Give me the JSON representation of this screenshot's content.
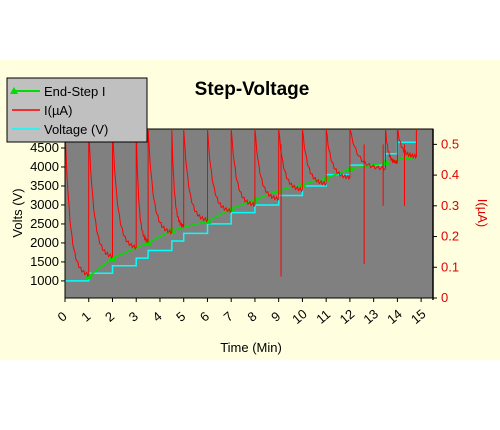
{
  "chart_data": {
    "type": "line",
    "title": "Step-Voltage",
    "xlabel": "Time (Min)",
    "ylabel_left": "Volts (V)",
    "ylabel_right": "I(µA)",
    "xlim": [
      0,
      15.5
    ],
    "ylim_left": [
      550,
      5000
    ],
    "ylim_right": [
      0,
      0.55
    ],
    "x_ticks": [
      0,
      1,
      2,
      3,
      4,
      5,
      6,
      7,
      8,
      9,
      10,
      11,
      12,
      13,
      14,
      15
    ],
    "y_ticks_left": [
      1000,
      1500,
      2000,
      2500,
      3000,
      3500,
      4000,
      4500
    ],
    "y_ticks_right": [
      0,
      0.1,
      0.2,
      0.3,
      0.4,
      0.5
    ],
    "y_tick_labels_right": [
      "0",
      "0.1",
      "0.2",
      "0.3",
      "0.4",
      "0.5"
    ],
    "legend": {
      "placement": "top-left",
      "entries": [
        "End-Step I",
        "I(µA)",
        "Voltage (V)"
      ]
    },
    "colors": {
      "plot_bg": "#808080",
      "panel_bg": "#ffffe0",
      "end_step": "#00dd00",
      "current": "#ff0000",
      "voltage": "#00ffff",
      "right_axis": "#e00000"
    },
    "series": [
      {
        "name": "End-Step I",
        "axis": "right",
        "x": [
          1,
          2,
          3.5,
          4.5,
          6,
          7,
          8,
          9,
          10,
          11,
          12,
          13.5,
          14.5
        ],
        "y": [
          0.07,
          0.13,
          0.18,
          0.22,
          0.25,
          0.29,
          0.32,
          0.35,
          0.37,
          0.39,
          0.42,
          0.44,
          0.46
        ]
      },
      {
        "name": "Voltage (V)",
        "axis": "left",
        "steps": [
          {
            "t0": 0.0,
            "t1": 1.0,
            "v": 1000
          },
          {
            "t0": 1.0,
            "t1": 2.0,
            "v": 1200
          },
          {
            "t0": 2.0,
            "t1": 3.0,
            "v": 1400
          },
          {
            "t0": 3.0,
            "t1": 3.5,
            "v": 1600
          },
          {
            "t0": 3.5,
            "t1": 4.5,
            "v": 1800
          },
          {
            "t0": 4.5,
            "t1": 5.0,
            "v": 2050
          },
          {
            "t0": 5.0,
            "t1": 6.0,
            "v": 2250
          },
          {
            "t0": 6.0,
            "t1": 7.0,
            "v": 2500
          },
          {
            "t0": 7.0,
            "t1": 8.0,
            "v": 2800
          },
          {
            "t0": 8.0,
            "t1": 9.0,
            "v": 3000
          },
          {
            "t0": 9.0,
            "t1": 10.0,
            "v": 3250
          },
          {
            "t0": 10.0,
            "t1": 11.0,
            "v": 3500
          },
          {
            "t0": 11.0,
            "t1": 12.0,
            "v": 3800
          },
          {
            "t0": 12.0,
            "t1": 13.5,
            "v": 4050
          },
          {
            "t0": 13.5,
            "t1": 14.0,
            "v": 4350
          },
          {
            "t0": 14.0,
            "t1": 14.8,
            "v": 4650
          }
        ]
      },
      {
        "name": "I(µA)",
        "axis": "right",
        "step_times": [
          0,
          1,
          2,
          3,
          3.5,
          4.5,
          5,
          6,
          7,
          8,
          9,
          10,
          11,
          12,
          13.5,
          14,
          14.8
        ],
        "peak": 0.55,
        "decay_floor": [
          0.07,
          0.13,
          0.16,
          0.18,
          0.21,
          0.23,
          0.25,
          0.28,
          0.3,
          0.32,
          0.35,
          0.37,
          0.39,
          0.42,
          0.44,
          0.46
        ],
        "dips": [
          {
            "x": 9.1,
            "y": 0.07
          },
          {
            "x": 12.6,
            "y": 0.11
          },
          {
            "x": 13.4,
            "y": 0.3
          },
          {
            "x": 14.3,
            "y": 0.3
          }
        ]
      }
    ]
  }
}
